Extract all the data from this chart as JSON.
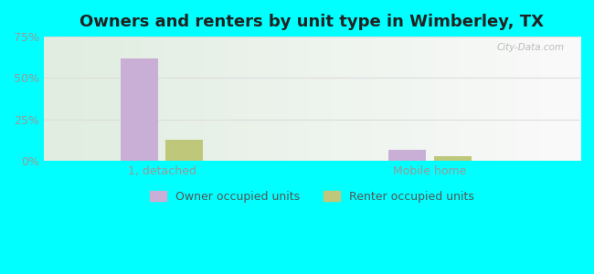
{
  "title": "Owners and renters by unit type in Wimberley, TX",
  "categories": [
    "1, detached",
    "Mobile home"
  ],
  "owner_values": [
    62.0,
    7.0
  ],
  "renter_values": [
    13.0,
    3.0
  ],
  "owner_color": "#c9aed6",
  "renter_color": "#bfc87a",
  "ylim": [
    0,
    75
  ],
  "yticks": [
    0,
    25,
    50,
    75
  ],
  "yticklabels": [
    "0%",
    "25%",
    "50%",
    "75%"
  ],
  "bar_width": 0.07,
  "group_positions": [
    0.22,
    0.72
  ],
  "outer_bg": "#00ffff",
  "watermark": "City-Data.com",
  "legend_labels": [
    "Owner occupied units",
    "Renter occupied units"
  ],
  "title_fontsize": 13,
  "tick_fontsize": 9,
  "legend_fontsize": 9,
  "tick_color": "#999999",
  "grid_color": "#dddddd"
}
